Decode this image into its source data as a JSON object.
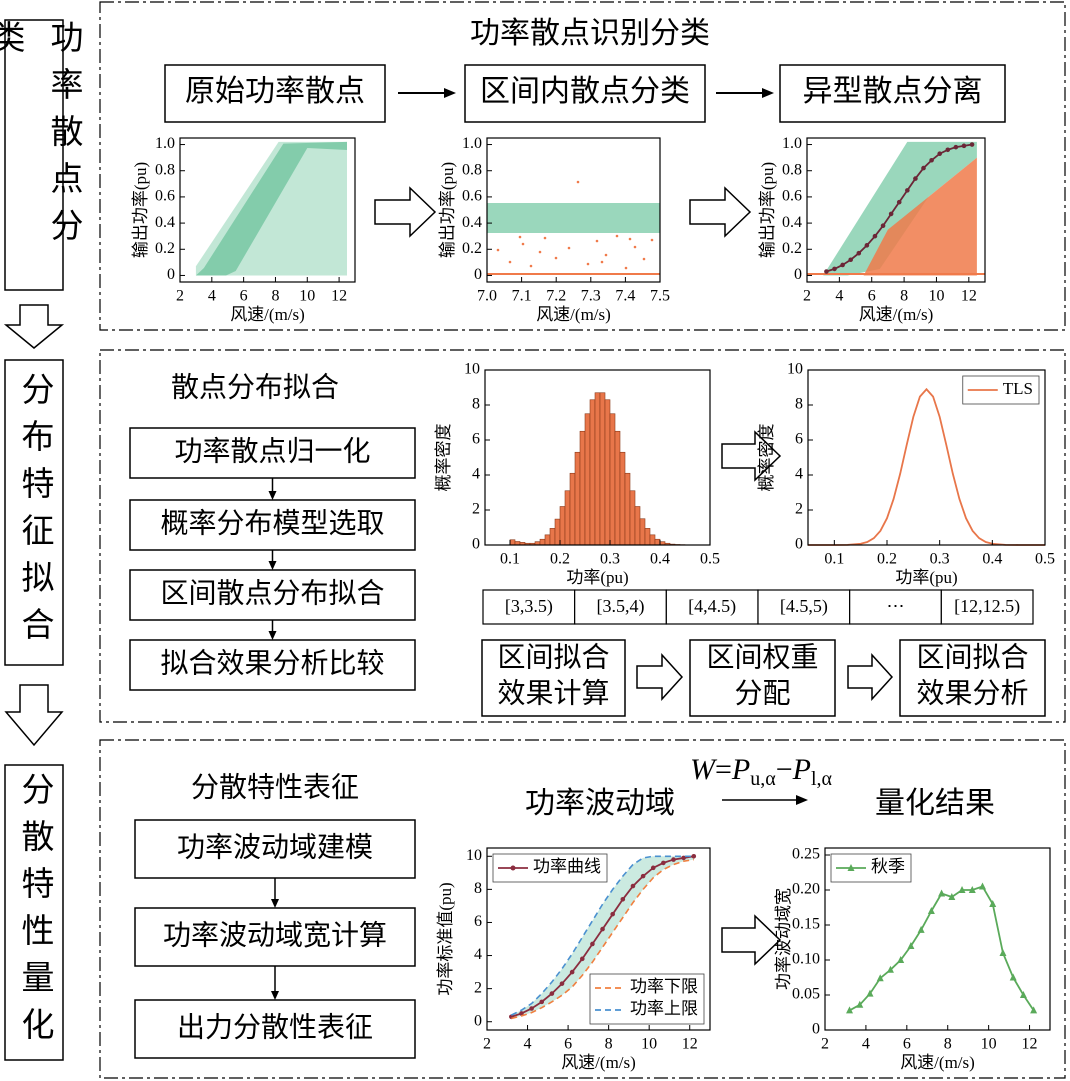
{
  "side_labels": [
    "功率散点分类",
    "分布特征拟合",
    "分散特性量化"
  ],
  "section1": {
    "title": "功率散点识别分类",
    "steps": [
      "原始功率散点",
      "区间内散点分类",
      "异型散点分离"
    ],
    "charts": [
      {
        "type": "scatter",
        "ylabel": "输出功率(pu)",
        "xlabel": "风速/(m/s)",
        "xlim": [
          2,
          13
        ],
        "xticks": [
          2,
          4,
          6,
          8,
          10,
          12
        ],
        "ylim": [
          -0.05,
          1.05
        ],
        "yticks": [
          0,
          0.2,
          0.4,
          0.6,
          0.8,
          {
            "value": 1,
            "label": "1.0"
          }
        ]
      },
      {
        "type": "scatter",
        "ylabel": "输出功率(pu)",
        "xlabel": "风速/(m/s)",
        "xlim": [
          7,
          7.5
        ],
        "xticks": [
          {
            "value": 7,
            "label": "7.0"
          },
          7.1,
          7.2,
          7.3,
          7.4,
          7.5
        ],
        "ylim": [
          -0.05,
          1.05
        ],
        "yticks": [
          0,
          0.2,
          0.4,
          0.6,
          0.8,
          {
            "value": 1,
            "label": "1.0"
          }
        ]
      },
      {
        "type": "scatter",
        "ylabel": "输出功率(pu)",
        "xlabel": "风速/(m/s)",
        "xlim": [
          2,
          13
        ],
        "xticks": [
          2,
          4,
          6,
          8,
          10,
          12
        ],
        "ylim": [
          -0.05,
          1.05
        ],
        "yticks": [
          0,
          0.2,
          0.4,
          0.6,
          0.8,
          {
            "value": 1,
            "label": "1.0"
          }
        ],
        "series": [
          {
            "color": "#6b2737",
            "marker": "circle",
            "x": [
              3.2,
              3.7,
              4.2,
              4.7,
              5.2,
              5.7,
              6.2,
              6.7,
              7.2,
              7.7,
              8.2,
              8.7,
              9.2,
              9.7,
              10.2,
              10.7,
              11.2,
              11.7,
              12.2
            ],
            "values": [
              0.03,
              0.05,
              0.08,
              0.12,
              0.17,
              0.23,
              0.3,
              0.38,
              0.47,
              0.56,
              0.65,
              0.74,
              0.82,
              0.88,
              0.93,
              0.96,
              0.98,
              0.99,
              1.0
            ]
          }
        ]
      }
    ]
  },
  "section2": {
    "title": "散点分布拟合",
    "steps": [
      "功率散点归一化",
      "概率分布模型选取",
      "区间散点分布拟合",
      "拟合效果分析比较"
    ],
    "charts": [
      {
        "type": "histogram",
        "ylabel": "概率密度",
        "xlabel": "功率(pu)",
        "xlim": [
          0.05,
          0.5
        ],
        "xticks": [
          0.1,
          0.2,
          0.3,
          0.4,
          0.5
        ],
        "ylim": [
          0,
          10
        ],
        "yticks": [
          0,
          2,
          4,
          6,
          8,
          10
        ],
        "color": "#e8764a",
        "bins": [
          0.1,
          0.11,
          0.12,
          0.13,
          0.14,
          0.15,
          0.16,
          0.17,
          0.18,
          0.19,
          0.2,
          0.21,
          0.22,
          0.23,
          0.24,
          0.25,
          0.26,
          0.27,
          0.28,
          0.29,
          0.3,
          0.31,
          0.32,
          0.33,
          0.34,
          0.35,
          0.36,
          0.37,
          0.38,
          0.39,
          0.4,
          0.41,
          0.42,
          0.43,
          0.44,
          0.45
        ],
        "values": [
          0.3,
          0.2,
          0.15,
          0.1,
          0.1,
          0.19,
          0.33,
          0.58,
          0.95,
          1.48,
          2.2,
          3.1,
          4.1,
          5.3,
          6.5,
          7.5,
          8.3,
          8.7,
          8.7,
          8.3,
          7.5,
          6.5,
          5.3,
          4.1,
          3.1,
          2.2,
          1.5,
          0.95,
          0.58,
          0.33,
          0.19,
          0.1,
          0.05,
          0.03,
          0.02
        ]
      },
      {
        "type": "line",
        "ylabel": "概率密度",
        "xlabel": "功率(pu)",
        "xlim": [
          0.05,
          0.5
        ],
        "xticks": [
          0.1,
          0.2,
          0.3,
          0.4,
          0.5
        ],
        "ylim": [
          0,
          10
        ],
        "yticks": [
          0,
          2,
          4,
          6,
          8,
          10
        ],
        "series": [
          {
            "name": "TLS",
            "color": "#e8764a",
            "legend": "upper right",
            "x": [
              0.05,
              0.1,
              0.125,
              0.15,
              0.1625,
              0.175,
              0.1875,
              0.2,
              0.2125,
              0.225,
              0.2375,
              0.25,
              0.2625,
              0.275,
              0.2875,
              0.3,
              0.3125,
              0.325,
              0.3375,
              0.35,
              0.3625,
              0.375,
              0.3875,
              0.4,
              0.425,
              0.45,
              0.5
            ],
            "values": [
              0,
              0.001,
              0.008,
              0.07,
              0.17,
              0.39,
              0.81,
              1.53,
              2.63,
              4.07,
              5.73,
              7.32,
              8.48,
              8.9,
              8.48,
              7.32,
              5.73,
              4.07,
              2.63,
              1.53,
              0.81,
              0.39,
              0.17,
              0.07,
              0.008,
              0.001,
              0
            ]
          }
        ]
      }
    ],
    "intervals": [
      "[3,3.5)",
      "[3.5,4)",
      "[4,4.5)",
      "[4.5,5)",
      "⋯",
      "[12,12.5)"
    ],
    "results": [
      [
        "区间拟合",
        "效果计算"
      ],
      [
        "区间权重",
        "分配"
      ],
      [
        "区间拟合",
        "效果分析"
      ]
    ]
  },
  "section3": {
    "title": "分散特性表征",
    "steps": [
      "功率波动域建模",
      "功率波动域宽计算",
      "出力分散性表征"
    ],
    "domain_label": "功率波动域",
    "formula": [
      "W",
      "=",
      "P",
      "u,α",
      "−",
      "P",
      "l,α"
    ],
    "result_label": "量化结果",
    "charts": [
      {
        "type": "band",
        "ylabel": "功率标准值(pu)",
        "xlabel": "风速/(m/s)",
        "xlim": [
          2,
          13
        ],
        "xticks": [
          2,
          4,
          6,
          8,
          10,
          12
        ],
        "ylim": [
          -0.5,
          10.5
        ],
        "yticks": [
          0,
          2,
          4,
          6,
          8,
          10
        ],
        "band_color": "#a8dccb",
        "x": [
          3.2,
          3.7,
          4.2,
          4.7,
          5.2,
          5.7,
          6.2,
          6.7,
          7.2,
          7.7,
          8.2,
          8.7,
          9.2,
          9.7,
          10.2,
          10.7,
          11.2,
          11.7,
          12.2
        ],
        "series": [
          {
            "name": "功率曲线",
            "color": "#8b2d3f",
            "marker": "circle",
            "legend": "upper left",
            "values": [
              0.3,
              0.5,
              0.8,
              1.2,
              1.7,
              2.3,
              3.0,
              3.8,
              4.7,
              5.6,
              6.5,
              7.4,
              8.2,
              8.8,
              9.3,
              9.6,
              9.8,
              9.9,
              10.0
            ]
          },
          {
            "name": "功率下限",
            "color": "#f08040",
            "dash": true,
            "legend": "lower right",
            "values": [
              0.2,
              0.35,
              0.55,
              0.85,
              1.2,
              1.6,
              2.1,
              2.8,
              3.6,
              4.5,
              5.4,
              6.3,
              7.2,
              8.0,
              8.7,
              9.2,
              9.5,
              9.7,
              9.8
            ]
          },
          {
            "name": "功率上限",
            "color": "#4a90d0",
            "dash": true,
            "legend": "lower right",
            "values": [
              0.4,
              0.7,
              1.1,
              1.7,
              2.4,
              3.2,
              4.1,
              5.1,
              6.1,
              7.1,
              8.0,
              8.8,
              9.5,
              9.9,
              10.0,
              10.0,
              10.0,
              10.0,
              10.0
            ]
          }
        ]
      },
      {
        "type": "line",
        "ylabel": "功率波动域宽",
        "xlabel": "风速/(m/s)",
        "xlim": [
          2,
          13
        ],
        "xticks": [
          2,
          4,
          6,
          8,
          10,
          12
        ],
        "ylim": [
          0,
          0.26
        ],
        "yticks": [
          0,
          0.05,
          {
            "value": 0.1,
            "label": "0.10"
          },
          0.15,
          {
            "value": 0.2,
            "label": "0.20"
          },
          0.25
        ],
        "series": [
          {
            "name": "秋季",
            "color": "#5aaa5a",
            "marker": "triangle",
            "legend": "upper left",
            "x": [
              3.2,
              3.7,
              4.2,
              4.7,
              5.2,
              5.7,
              6.2,
              6.7,
              7.2,
              7.7,
              8.2,
              8.7,
              9.2,
              9.7,
              10.2,
              10.7,
              11.2,
              11.7,
              12.2
            ],
            "values": [
              0.028,
              0.036,
              0.052,
              0.074,
              0.086,
              0.1,
              0.12,
              0.143,
              0.17,
              0.195,
              0.19,
              0.2,
              0.2,
              0.205,
              0.18,
              0.11,
              0.075,
              0.05,
              0.028
            ]
          }
        ]
      }
    ]
  }
}
